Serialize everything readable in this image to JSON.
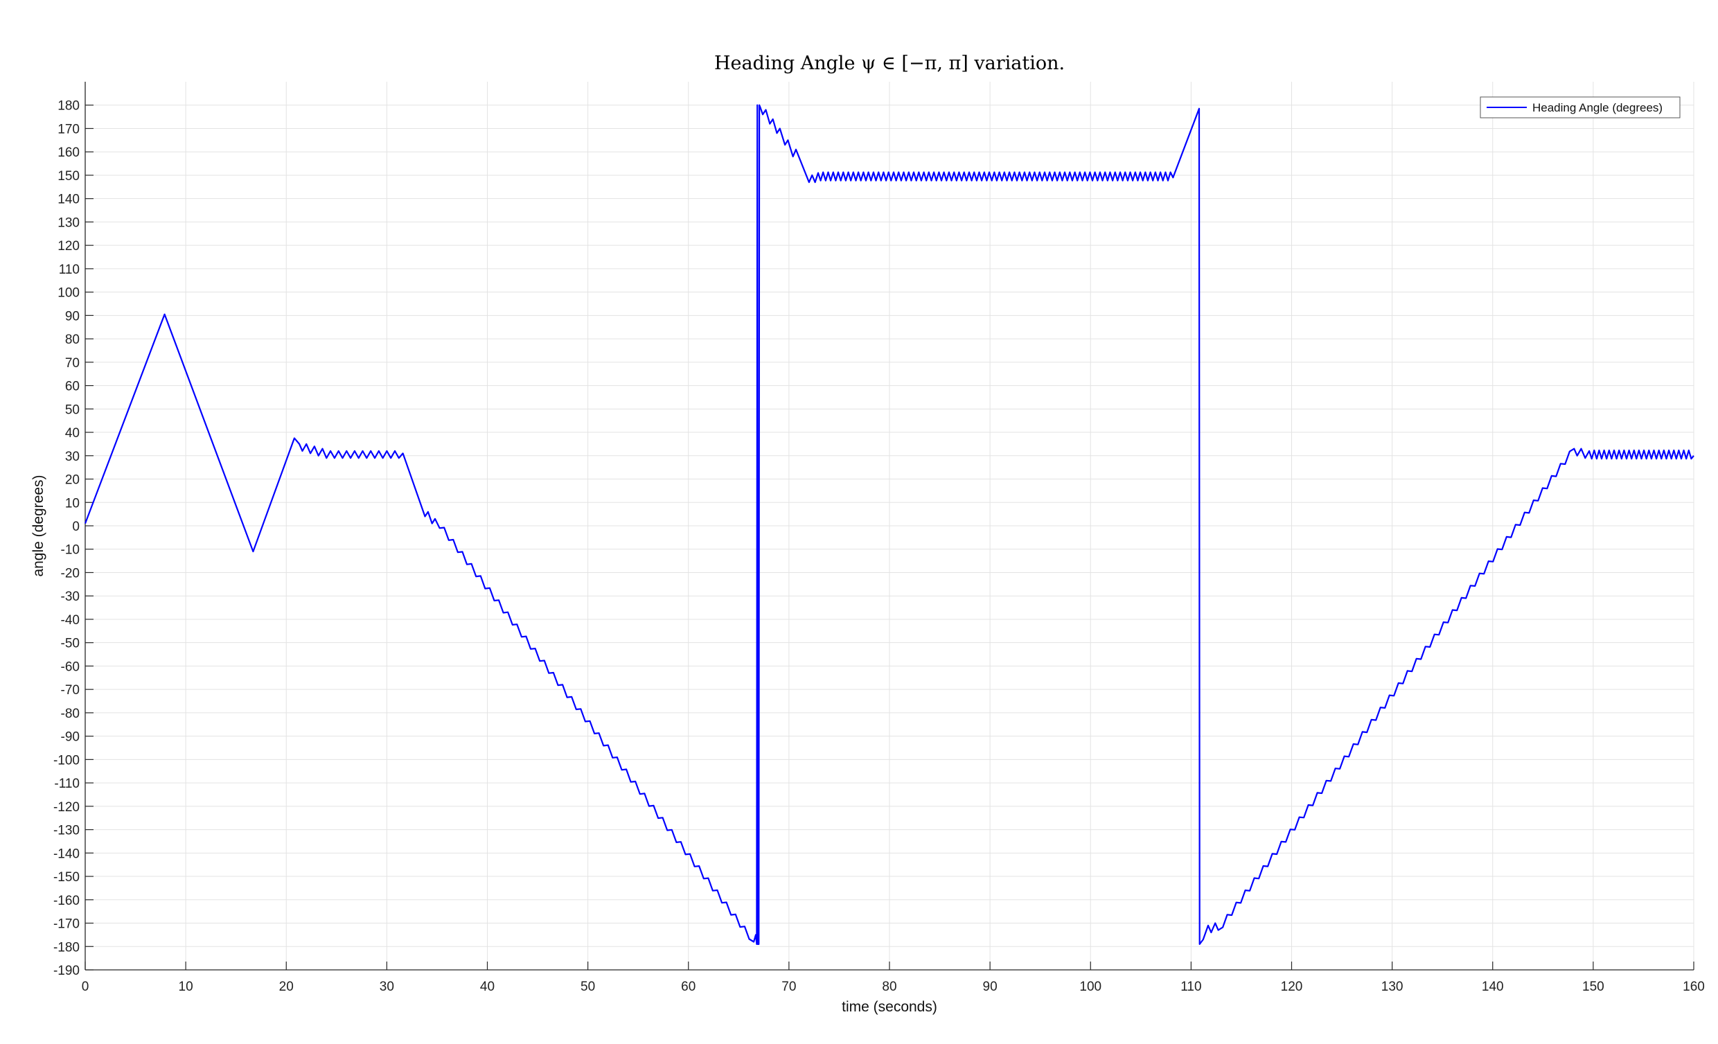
{
  "chart_data": {
    "type": "line",
    "title": "Heading Angle ψ ∈ [−π, π] variation.",
    "xlabel": "time (seconds)",
    "ylabel": "angle (degrees)",
    "xlim": [
      0,
      160
    ],
    "ylim": [
      -190,
      190
    ],
    "x_ticks": [
      0,
      10,
      20,
      30,
      40,
      50,
      60,
      70,
      80,
      90,
      100,
      110,
      120,
      130,
      140,
      150,
      160
    ],
    "y_ticks": [
      -190,
      -180,
      -170,
      -160,
      -150,
      -140,
      -130,
      -120,
      -110,
      -100,
      -90,
      -80,
      -70,
      -60,
      -50,
      -40,
      -30,
      -20,
      -10,
      0,
      10,
      20,
      30,
      40,
      50,
      60,
      70,
      80,
      90,
      100,
      110,
      120,
      130,
      140,
      150,
      160,
      170,
      180
    ],
    "grid": true,
    "legend_position": "top-right",
    "series": [
      {
        "name": "Heading Angle (degrees)",
        "color": "#0000ff",
        "points": [
          [
            0,
            1
          ],
          [
            7.9,
            90.5
          ],
          [
            16.7,
            -11
          ],
          [
            20.8,
            37.5
          ],
          [
            21.3,
            35
          ],
          [
            21.6,
            32
          ],
          [
            22.0,
            35
          ],
          [
            22.4,
            31
          ],
          [
            22.8,
            34
          ],
          [
            23.2,
            30
          ],
          [
            23.6,
            33
          ],
          [
            24.0,
            29
          ],
          [
            24.4,
            32
          ],
          [
            24.8,
            29
          ],
          [
            25.2,
            32
          ],
          [
            25.6,
            29
          ],
          [
            26.0,
            32
          ],
          [
            26.4,
            29
          ],
          [
            26.8,
            32
          ],
          [
            27.2,
            29
          ],
          [
            27.6,
            32
          ],
          [
            28.0,
            29
          ],
          [
            28.4,
            32
          ],
          [
            28.8,
            29
          ],
          [
            29.2,
            32
          ],
          [
            29.6,
            29
          ],
          [
            30.0,
            32
          ],
          [
            30.4,
            29
          ],
          [
            30.8,
            32
          ],
          [
            31.2,
            29
          ],
          [
            31.6,
            31
          ],
          [
            33.8,
            4
          ],
          [
            34.1,
            6
          ],
          [
            34.5,
            1
          ],
          [
            34.8,
            3
          ],
          [
            66.5,
            -178
          ],
          [
            66.7,
            -175
          ],
          [
            66.8,
            -179
          ],
          [
            66.85,
            180
          ],
          [
            66.9,
            -179
          ],
          [
            67.0,
            -179
          ],
          [
            67.05,
            180
          ],
          [
            67.15,
            179
          ],
          [
            67.4,
            176
          ],
          [
            67.7,
            178
          ],
          [
            68.1,
            172
          ],
          [
            68.4,
            174
          ],
          [
            68.8,
            168
          ],
          [
            69.1,
            170
          ],
          [
            69.6,
            163
          ],
          [
            69.9,
            165
          ],
          [
            70.4,
            158
          ],
          [
            70.7,
            161
          ],
          [
            72.0,
            147
          ],
          [
            72.3,
            150
          ],
          [
            72.6,
            147
          ],
          [
            72.9,
            151
          ],
          [
            108.2,
            149
          ],
          [
            110.8,
            178.5
          ],
          [
            110.85,
            -179
          ],
          [
            111.2,
            -177
          ],
          [
            111.7,
            -171
          ],
          [
            112.0,
            -174
          ],
          [
            112.4,
            -170
          ],
          [
            112.7,
            -173
          ],
          [
            148.1,
            33
          ],
          [
            148.4,
            30
          ],
          [
            148.8,
            33
          ],
          [
            149.2,
            29
          ],
          [
            149.6,
            32
          ],
          [
            160,
            30
          ]
        ],
        "ripple_segments": [
          {
            "x_start": 34.8,
            "x_end": 66.5,
            "y_start": 3,
            "y_end": -178,
            "period": 0.9,
            "amplitude": 1.4
          },
          {
            "x_start": 72.9,
            "x_end": 108.2,
            "y_start": 149.5,
            "y_end": 149.5,
            "period": 0.5,
            "amplitude": 1.8
          },
          {
            "x_start": 112.7,
            "x_end": 148.1,
            "y_start": -173,
            "y_end": 33,
            "period": 0.9,
            "amplitude": 1.4
          },
          {
            "x_start": 149.6,
            "x_end": 160,
            "y_start": 30.5,
            "y_end": 30.5,
            "period": 0.5,
            "amplitude": 1.8
          }
        ]
      }
    ]
  }
}
